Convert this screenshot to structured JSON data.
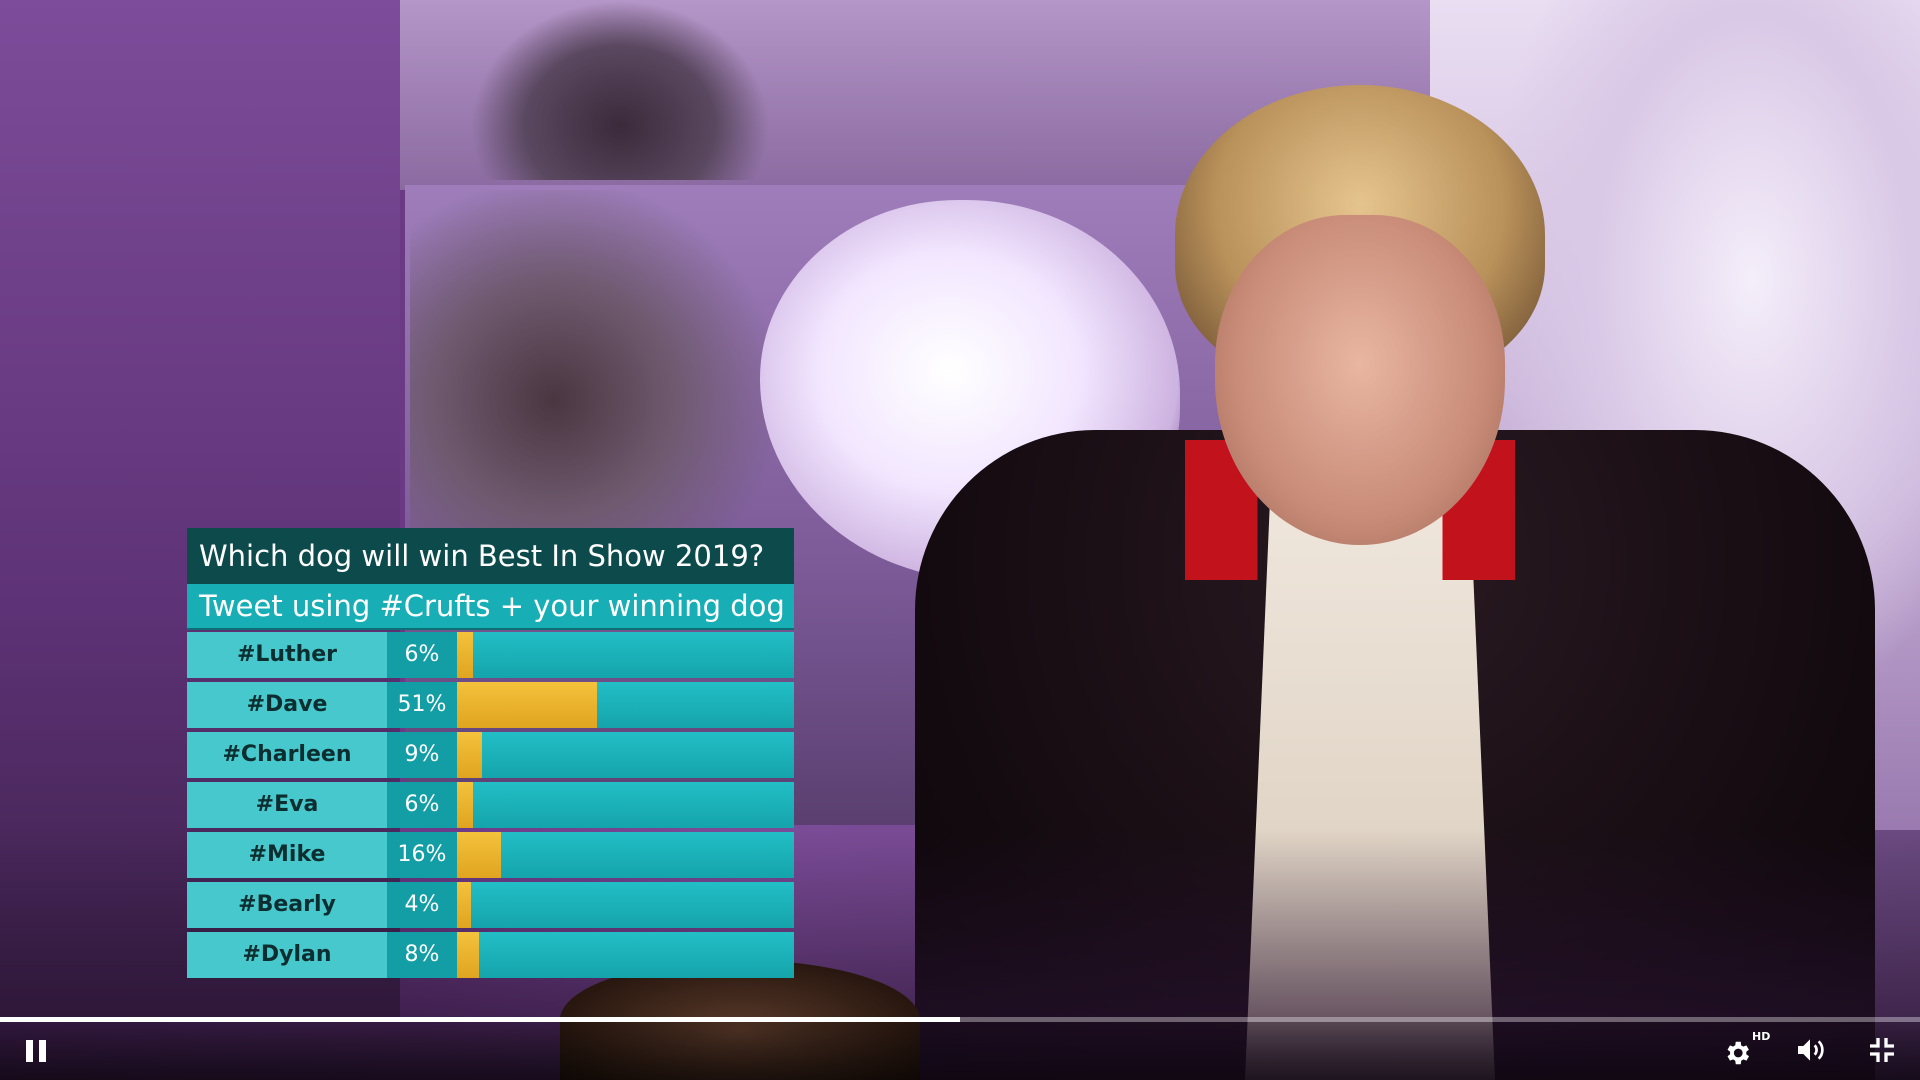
{
  "poll": {
    "question": "Which dog will win Best In Show 2019?",
    "instruction": "Tweet using #Crufts + your winning dog",
    "rows": [
      {
        "name": "#Luther",
        "percent_label": "6%",
        "percent": 6
      },
      {
        "name": "#Dave",
        "percent_label": "51%",
        "percent": 51
      },
      {
        "name": "#Charleen",
        "percent_label": "9%",
        "percent": 9
      },
      {
        "name": "#Eva",
        "percent_label": "6%",
        "percent": 6
      },
      {
        "name": "#Mike",
        "percent_label": "16%",
        "percent": 16
      },
      {
        "name": "#Bearly",
        "percent_label": "4%",
        "percent": 4
      },
      {
        "name": "#Dylan",
        "percent_label": "8%",
        "percent": 8
      }
    ],
    "colors": {
      "bar": "#e8b02a",
      "track": "#18aeb6",
      "header": "#0d4a4c"
    }
  },
  "player": {
    "progress": 0.5,
    "hd_badge": "HD",
    "icons": [
      "pause-icon",
      "settings-icon",
      "volume-icon",
      "exit-fullscreen-icon"
    ]
  }
}
